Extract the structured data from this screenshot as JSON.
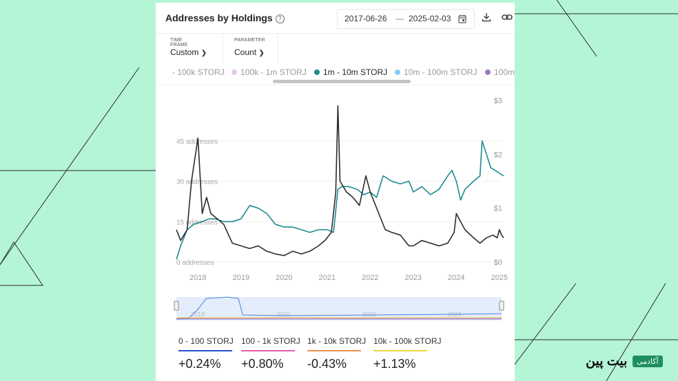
{
  "header": {
    "title": "Addresses by Holdings",
    "help_icon": "question-circle-icon"
  },
  "date_range": {
    "start": "2017-06-26",
    "separator": "—",
    "end": "2025-02-03"
  },
  "toolbar": {
    "calendar_icon": "calendar-icon",
    "download_icon": "download-icon",
    "link_icon": "link-icon"
  },
  "selectors": {
    "timeframe": {
      "label": "TIME FRAME",
      "value": "Custom"
    },
    "parameter": {
      "label": "PARAMETER",
      "value": "Count"
    }
  },
  "legend": [
    {
      "label": "- 100k STORJ",
      "color": null,
      "active": false
    },
    {
      "label": "100k - 1m STORJ",
      "color": "#e6c8f0",
      "active": false
    },
    {
      "label": "1m - 10m STORJ",
      "color": "#1d8a90",
      "active": true
    },
    {
      "label": "10m - 100m STORJ",
      "color": "#8cc9f0",
      "active": false
    },
    {
      "label": "100m",
      "color": "#9b7ac0",
      "active": false
    }
  ],
  "chart_data": {
    "type": "line",
    "x_tick_labels": [
      "2018",
      "2019",
      "2020",
      "2021",
      "2022",
      "2023",
      "2024",
      "2025"
    ],
    "y_left_tick_labels": [
      "0 addresses",
      "15 addresses",
      "30 addresses",
      "45 addresses"
    ],
    "y_left_range": [
      0,
      60
    ],
    "y_right_tick_labels": [
      "$0",
      "$1",
      "$2",
      "$3"
    ],
    "y_right_range": [
      0,
      3
    ],
    "grid": true,
    "series": [
      {
        "name": "1m - 10m STORJ",
        "axis": "left",
        "color": "#1d8a90",
        "points": [
          [
            2017.5,
            1
          ],
          [
            2017.6,
            6
          ],
          [
            2017.75,
            12
          ],
          [
            2017.9,
            14
          ],
          [
            2018.1,
            15
          ],
          [
            2018.25,
            16
          ],
          [
            2018.4,
            16
          ],
          [
            2018.6,
            15
          ],
          [
            2018.8,
            15
          ],
          [
            2019.0,
            16
          ],
          [
            2019.2,
            21
          ],
          [
            2019.4,
            20
          ],
          [
            2019.6,
            18
          ],
          [
            2019.8,
            14
          ],
          [
            2020.0,
            13
          ],
          [
            2020.2,
            13
          ],
          [
            2020.4,
            12
          ],
          [
            2020.6,
            11
          ],
          [
            2020.8,
            12
          ],
          [
            2021.0,
            12
          ],
          [
            2021.15,
            11
          ],
          [
            2021.25,
            27
          ],
          [
            2021.35,
            28
          ],
          [
            2021.5,
            28
          ],
          [
            2021.7,
            27
          ],
          [
            2021.85,
            25
          ],
          [
            2022.0,
            26
          ],
          [
            2022.15,
            24
          ],
          [
            2022.3,
            32
          ],
          [
            2022.5,
            30
          ],
          [
            2022.7,
            29
          ],
          [
            2022.9,
            30
          ],
          [
            2023.0,
            26
          ],
          [
            2023.2,
            28
          ],
          [
            2023.4,
            25
          ],
          [
            2023.6,
            27
          ],
          [
            2023.8,
            32
          ],
          [
            2023.9,
            34
          ],
          [
            2024.0,
            30
          ],
          [
            2024.1,
            23
          ],
          [
            2024.2,
            27
          ],
          [
            2024.4,
            30
          ],
          [
            2024.55,
            32
          ],
          [
            2024.6,
            45
          ],
          [
            2024.7,
            40
          ],
          [
            2024.8,
            35
          ],
          [
            2024.9,
            34
          ],
          [
            2025.0,
            33
          ],
          [
            2025.1,
            32
          ]
        ]
      },
      {
        "name": "STORJ price",
        "axis": "right",
        "color": "#2b2b2b",
        "points": [
          [
            2017.5,
            0.6
          ],
          [
            2017.6,
            0.4
          ],
          [
            2017.75,
            0.6
          ],
          [
            2017.85,
            1.5
          ],
          [
            2018.0,
            2.3
          ],
          [
            2018.1,
            0.9
          ],
          [
            2018.2,
            1.2
          ],
          [
            2018.3,
            0.9
          ],
          [
            2018.45,
            0.8
          ],
          [
            2018.6,
            0.7
          ],
          [
            2018.8,
            0.35
          ],
          [
            2019.0,
            0.3
          ],
          [
            2019.2,
            0.25
          ],
          [
            2019.4,
            0.3
          ],
          [
            2019.6,
            0.2
          ],
          [
            2019.8,
            0.15
          ],
          [
            2020.0,
            0.12
          ],
          [
            2020.2,
            0.2
          ],
          [
            2020.4,
            0.15
          ],
          [
            2020.6,
            0.2
          ],
          [
            2020.8,
            0.3
          ],
          [
            2020.95,
            0.4
          ],
          [
            2021.1,
            0.55
          ],
          [
            2021.2,
            1.3
          ],
          [
            2021.25,
            2.9
          ],
          [
            2021.3,
            1.5
          ],
          [
            2021.45,
            1.3
          ],
          [
            2021.6,
            1.2
          ],
          [
            2021.75,
            1.05
          ],
          [
            2021.9,
            1.6
          ],
          [
            2022.0,
            1.3
          ],
          [
            2022.2,
            0.9
          ],
          [
            2022.35,
            0.6
          ],
          [
            2022.5,
            0.55
          ],
          [
            2022.7,
            0.5
          ],
          [
            2022.9,
            0.3
          ],
          [
            2023.0,
            0.3
          ],
          [
            2023.2,
            0.4
          ],
          [
            2023.4,
            0.35
          ],
          [
            2023.6,
            0.3
          ],
          [
            2023.8,
            0.35
          ],
          [
            2023.95,
            0.55
          ],
          [
            2024.0,
            0.9
          ],
          [
            2024.1,
            0.75
          ],
          [
            2024.2,
            0.6
          ],
          [
            2024.4,
            0.45
          ],
          [
            2024.55,
            0.35
          ],
          [
            2024.7,
            0.45
          ],
          [
            2024.85,
            0.5
          ],
          [
            2024.95,
            0.45
          ],
          [
            2025.0,
            0.6
          ],
          [
            2025.05,
            0.5
          ],
          [
            2025.1,
            0.45
          ]
        ]
      }
    ],
    "navigator_x_labels": [
      "2018",
      "2020",
      "2022",
      "2024"
    ]
  },
  "summary": [
    {
      "label": "0 - 100 STORJ",
      "change": "+0.24%",
      "color": "#1f4fd6"
    },
    {
      "label": "100 - 1k STORJ",
      "change": "+0.80%",
      "color": "#e85aa8"
    },
    {
      "label": "1k - 10k STORJ",
      "change": "-0.43%",
      "color": "#f0904a"
    },
    {
      "label": "10k - 100k STORJ",
      "change": "+1.13%",
      "color": "#e8d63a"
    }
  ],
  "brand": {
    "name": "بیت پین",
    "tag": "آکادمی",
    "accent": "#1f8f5e"
  }
}
